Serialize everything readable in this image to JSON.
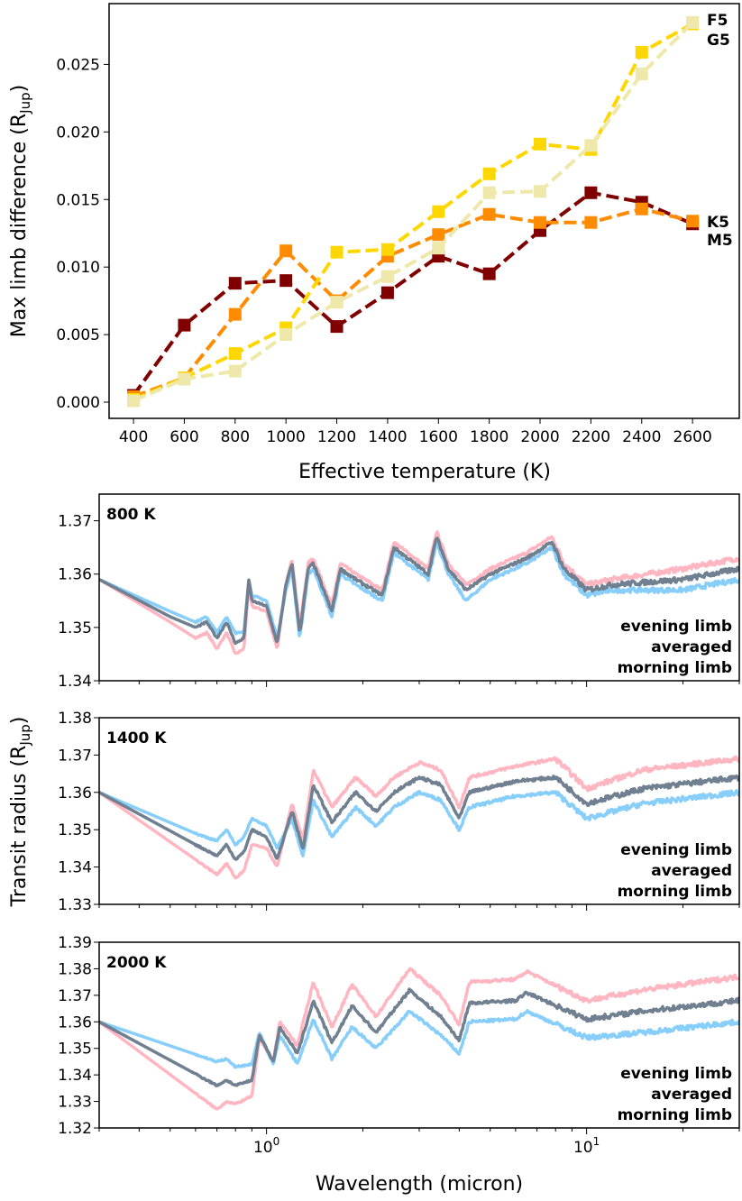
{
  "chart_data": [
    {
      "type": "line",
      "xlabel": "Effective temperature (K)",
      "ylabel": "Max limb difference (R",
      "ylabel_sub": "Jup",
      "ylabel_end": ")",
      "xlim": [
        304,
        2784
      ],
      "ylim": [
        -0.0012,
        0.0295
      ],
      "xticks": [
        400,
        600,
        800,
        1000,
        1200,
        1400,
        1600,
        1800,
        2000,
        2200,
        2400,
        2600
      ],
      "yticks": [
        "0.000",
        "0.005",
        "0.010",
        "0.015",
        "0.020",
        "0.025"
      ],
      "grid": false,
      "marker": "square",
      "linestyle": "dashed",
      "x": [
        400,
        600,
        800,
        1000,
        1200,
        1400,
        1600,
        1800,
        2000,
        2200,
        2400,
        2600
      ],
      "series": [
        {
          "name": "M5",
          "color": "#800000",
          "values": [
            0.0005,
            0.0057,
            0.0088,
            0.009,
            0.0056,
            0.0081,
            0.0108,
            0.0095,
            0.0127,
            0.0155,
            0.0148,
            0.0132
          ]
        },
        {
          "name": "K5",
          "color": "#ff8c00",
          "values": [
            0.0004,
            0.0018,
            0.0065,
            0.0112,
            0.0075,
            0.0108,
            0.0124,
            0.0139,
            0.0133,
            0.0133,
            0.0143,
            0.0134
          ]
        },
        {
          "name": "G5",
          "color": "#ffd700",
          "values": [
            0.0002,
            0.0018,
            0.0036,
            0.0055,
            0.0111,
            0.0113,
            0.0141,
            0.0169,
            0.0191,
            0.0187,
            0.0259,
            0.028
          ]
        },
        {
          "name": "F5",
          "color": "#eee8aa",
          "values": [
            0.0001,
            0.0017,
            0.0023,
            0.005,
            0.0074,
            0.0093,
            0.0114,
            0.0155,
            0.0156,
            0.019,
            0.0243,
            0.0281
          ]
        }
      ]
    },
    {
      "type": "line",
      "title": "800 K",
      "xscale": "log",
      "xlim": [
        0.3,
        30
      ],
      "ylim": [
        1.34,
        1.375
      ],
      "yticks": [
        "1.34",
        "1.35",
        "1.36",
        "1.37"
      ],
      "x": [
        0.3,
        0.5,
        0.6,
        0.65,
        0.7,
        0.75,
        0.8,
        0.85,
        0.88,
        0.9,
        1.0,
        1.08,
        1.15,
        1.2,
        1.27,
        1.35,
        1.4,
        1.6,
        1.7,
        1.9,
        2.3,
        2.5,
        2.9,
        3.2,
        3.4,
        3.7,
        4.2,
        5,
        6.5,
        7.8,
        8.5,
        10,
        12,
        20,
        30
      ],
      "series": [
        {
          "name": "evening limb",
          "color": "#ffb6c1",
          "values": [
            1.359,
            1.351,
            1.348,
            1.349,
            1.346,
            1.349,
            1.345,
            1.346,
            1.358,
            1.354,
            1.353,
            1.346,
            1.358,
            1.363,
            1.35,
            1.362,
            1.363,
            1.354,
            1.362,
            1.36,
            1.357,
            1.366,
            1.363,
            1.361,
            1.368,
            1.362,
            1.358,
            1.361,
            1.364,
            1.367,
            1.362,
            1.358,
            1.359,
            1.361,
            1.363
          ]
        },
        {
          "name": "morning limb",
          "color": "#87cefa",
          "values": [
            1.359,
            1.353,
            1.351,
            1.352,
            1.349,
            1.352,
            1.349,
            1.349,
            1.359,
            1.356,
            1.355,
            1.348,
            1.357,
            1.361,
            1.348,
            1.36,
            1.361,
            1.352,
            1.36,
            1.358,
            1.355,
            1.364,
            1.361,
            1.359,
            1.366,
            1.36,
            1.355,
            1.359,
            1.362,
            1.365,
            1.36,
            1.356,
            1.357,
            1.357,
            1.359
          ]
        },
        {
          "name": "averaged",
          "color": "#708090",
          "values": [
            1.359,
            1.352,
            1.35,
            1.351,
            1.348,
            1.351,
            1.347,
            1.348,
            1.359,
            1.355,
            1.354,
            1.347,
            1.358,
            1.362,
            1.349,
            1.361,
            1.362,
            1.353,
            1.361,
            1.359,
            1.356,
            1.365,
            1.362,
            1.36,
            1.367,
            1.361,
            1.357,
            1.36,
            1.363,
            1.366,
            1.361,
            1.357,
            1.358,
            1.359,
            1.361
          ]
        }
      ]
    },
    {
      "type": "line",
      "title": "1400 K",
      "xscale": "log",
      "xlim": [
        0.3,
        30
      ],
      "ylim": [
        1.33,
        1.38
      ],
      "yticks": [
        "1.33",
        "1.34",
        "1.35",
        "1.36",
        "1.37",
        "1.38"
      ],
      "x": [
        0.3,
        0.6,
        0.7,
        0.75,
        0.8,
        0.85,
        0.9,
        1.0,
        1.08,
        1.2,
        1.3,
        1.4,
        1.6,
        1.9,
        2.2,
        2.5,
        3.0,
        3.5,
        4.0,
        4.3,
        6,
        8,
        10,
        15,
        30
      ],
      "series": [
        {
          "name": "evening limb",
          "color": "#ffb6c1",
          "values": [
            1.36,
            1.342,
            1.338,
            1.341,
            1.337,
            1.339,
            1.346,
            1.345,
            1.34,
            1.357,
            1.347,
            1.366,
            1.356,
            1.364,
            1.359,
            1.364,
            1.368,
            1.366,
            1.356,
            1.364,
            1.367,
            1.369,
            1.361,
            1.366,
            1.369
          ]
        },
        {
          "name": "morning limb",
          "color": "#87cefa",
          "values": [
            1.36,
            1.349,
            1.347,
            1.35,
            1.346,
            1.348,
            1.353,
            1.351,
            1.345,
            1.353,
            1.343,
            1.358,
            1.348,
            1.356,
            1.351,
            1.356,
            1.36,
            1.358,
            1.35,
            1.356,
            1.359,
            1.36,
            1.353,
            1.357,
            1.36
          ]
        },
        {
          "name": "averaged",
          "color": "#708090",
          "values": [
            1.36,
            1.346,
            1.343,
            1.346,
            1.342,
            1.344,
            1.35,
            1.348,
            1.342,
            1.355,
            1.345,
            1.362,
            1.352,
            1.36,
            1.355,
            1.36,
            1.364,
            1.362,
            1.353,
            1.36,
            1.363,
            1.364,
            1.357,
            1.361,
            1.364
          ]
        }
      ]
    },
    {
      "type": "line",
      "title": "2000 K",
      "xscale": "log",
      "xlim": [
        0.3,
        30
      ],
      "ylim": [
        1.32,
        1.39
      ],
      "yticks": [
        "1.32",
        "1.33",
        "1.34",
        "1.35",
        "1.36",
        "1.37",
        "1.38",
        "1.39"
      ],
      "x": [
        0.3,
        0.7,
        0.75,
        0.8,
        0.9,
        0.95,
        1.05,
        1.1,
        1.25,
        1.4,
        1.6,
        1.85,
        2.2,
        2.8,
        3.5,
        4.0,
        4.3,
        6,
        6.5,
        10,
        15,
        30
      ],
      "series": [
        {
          "name": "evening limb",
          "color": "#ffb6c1",
          "values": [
            1.36,
            1.327,
            1.33,
            1.329,
            1.332,
            1.354,
            1.345,
            1.36,
            1.351,
            1.375,
            1.358,
            1.374,
            1.362,
            1.38,
            1.37,
            1.359,
            1.375,
            1.376,
            1.379,
            1.368,
            1.372,
            1.377
          ]
        },
        {
          "name": "morning limb",
          "color": "#87cefa",
          "values": [
            1.36,
            1.345,
            1.346,
            1.343,
            1.344,
            1.356,
            1.344,
            1.355,
            1.344,
            1.361,
            1.346,
            1.358,
            1.35,
            1.364,
            1.355,
            1.348,
            1.36,
            1.361,
            1.364,
            1.354,
            1.356,
            1.36
          ]
        },
        {
          "name": "averaged",
          "color": "#708090",
          "values": [
            1.36,
            1.336,
            1.338,
            1.336,
            1.338,
            1.355,
            1.345,
            1.358,
            1.348,
            1.368,
            1.352,
            1.366,
            1.356,
            1.372,
            1.362,
            1.353,
            1.367,
            1.368,
            1.371,
            1.361,
            1.364,
            1.368
          ]
        }
      ]
    }
  ],
  "bottom": {
    "xlabel": "Wavelength (micron)",
    "ylabel": "Transit radius (R",
    "ylabel_sub": "Jup",
    "ylabel_end": ")",
    "xticks": [
      {
        "base": "10",
        "exp": "0",
        "value": 1
      },
      {
        "base": "10",
        "exp": "1",
        "value": 10
      }
    ],
    "legend": [
      "evening limb",
      "averaged",
      "morning limb"
    ],
    "legend_placement": "lower-right"
  }
}
